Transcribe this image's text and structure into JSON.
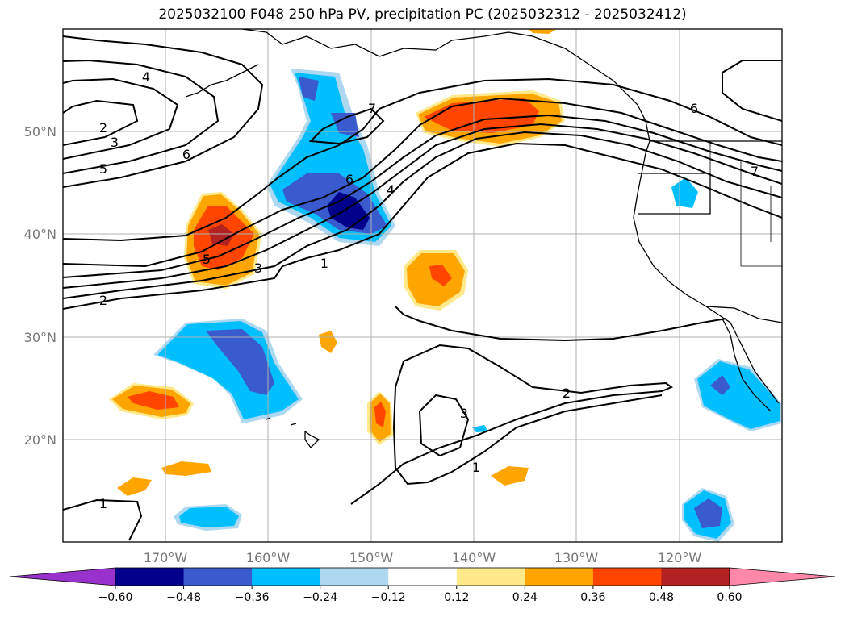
{
  "title": "2025032100 F048 250 hPa PV, precipitation PC (2025032312 - 2025032412)",
  "map": {
    "lon_range": [
      -180,
      -110
    ],
    "lat_range": [
      10,
      60
    ],
    "lat_ticks": [
      {
        "value": 50,
        "label": "50°N"
      },
      {
        "value": 40,
        "label": "40°N"
      },
      {
        "value": 30,
        "label": "30°N"
      },
      {
        "value": 20,
        "label": "20°N"
      }
    ],
    "lon_ticks": [
      {
        "value": -170,
        "label": "170°W"
      },
      {
        "value": -160,
        "label": "160°W"
      },
      {
        "value": -150,
        "label": "150°W"
      },
      {
        "value": -140,
        "label": "140°W"
      },
      {
        "value": -130,
        "label": "130°W"
      },
      {
        "value": -120,
        "label": "120°W"
      }
    ],
    "grid": true,
    "pv_contour_labels": [
      "4",
      "2",
      "3",
      "5",
      "6",
      "7",
      "6",
      "4",
      "1",
      "5",
      "3",
      "2",
      "2",
      "3",
      "1",
      "1",
      "6",
      "7"
    ]
  },
  "colorbar": {
    "colors": [
      "#9932cc",
      "#00008b",
      "#3a5bcd",
      "#00bfff",
      "#add8f0",
      "#ffffff",
      "#ffe98a",
      "#ffa500",
      "#ff4500",
      "#b22222",
      "#ff88aa"
    ],
    "tick_labels": [
      "−0.60",
      "−0.48",
      "−0.36",
      "−0.24",
      "−0.12",
      "0.12",
      "0.24",
      "0.36",
      "0.48",
      "0.60"
    ],
    "extend": "both"
  }
}
